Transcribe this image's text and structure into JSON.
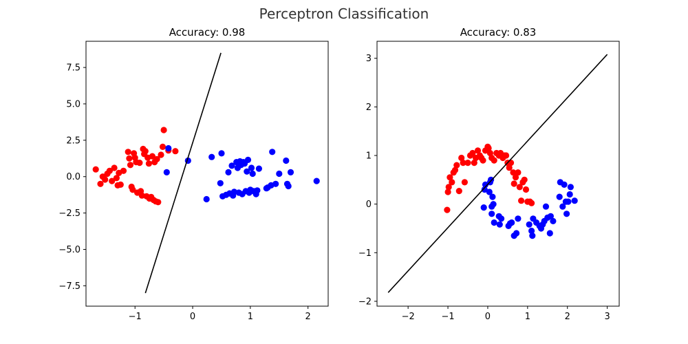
{
  "figure": {
    "suptitle": "Perceptron Classification"
  },
  "colors": {
    "class0": "#ff0000",
    "class1": "#0000ff",
    "boundary": "#000000"
  },
  "chart_data": [
    {
      "type": "scatter",
      "title": "Accuracy: 0.98",
      "xlim": [
        -1.85,
        2.35
      ],
      "ylim": [
        -8.9,
        9.3
      ],
      "xticks": [
        -1,
        0,
        1,
        2
      ],
      "xtick_labels": [
        "−1",
        "0",
        "1",
        "2"
      ],
      "yticks": [
        -7.5,
        -5.0,
        -2.5,
        0.0,
        2.5,
        5.0,
        7.5
      ],
      "ytick_labels": [
        "−7.5",
        "−5.0",
        "−2.5",
        "0.0",
        "2.5",
        "5.0",
        "7.5"
      ],
      "boundary": {
        "x": [
          -0.82,
          0.49
        ],
        "y": [
          -8.0,
          8.5
        ]
      },
      "series": [
        {
          "color": "#ff0000",
          "points": [
            [
              -1.68,
              0.5
            ],
            [
              -1.6,
              -0.5
            ],
            [
              -1.56,
              0.0
            ],
            [
              -1.52,
              -0.2
            ],
            [
              -1.48,
              0.2
            ],
            [
              -1.44,
              0.4
            ],
            [
              -1.4,
              -0.3
            ],
            [
              -1.36,
              0.6
            ],
            [
              -1.32,
              -0.1
            ],
            [
              -1.3,
              -0.6
            ],
            [
              -1.28,
              0.25
            ],
            [
              -1.25,
              -0.55
            ],
            [
              -1.2,
              0.4
            ],
            [
              -1.12,
              1.7
            ],
            [
              -1.1,
              1.25
            ],
            [
              -1.08,
              0.8
            ],
            [
              -1.06,
              -0.7
            ],
            [
              -1.04,
              -0.9
            ],
            [
              -1.02,
              1.6
            ],
            [
              -1.0,
              1.3
            ],
            [
              -0.98,
              1.0
            ],
            [
              -0.96,
              -1.1
            ],
            [
              -0.92,
              0.95
            ],
            [
              -0.9,
              -1.0
            ],
            [
              -0.88,
              -1.3
            ],
            [
              -0.86,
              1.9
            ],
            [
              -0.84,
              1.55
            ],
            [
              -0.82,
              1.75
            ],
            [
              -0.8,
              -1.35
            ],
            [
              -0.78,
              1.3
            ],
            [
              -0.76,
              0.9
            ],
            [
              -0.75,
              -1.5
            ],
            [
              -0.72,
              -1.4
            ],
            [
              -0.7,
              1.4
            ],
            [
              -0.68,
              -1.6
            ],
            [
              -0.66,
              1.0
            ],
            [
              -0.64,
              -1.7
            ],
            [
              -0.62,
              1.2
            ],
            [
              -0.6,
              -1.75
            ],
            [
              -0.55,
              1.5
            ],
            [
              -0.52,
              2.05
            ],
            [
              -0.5,
              3.2
            ],
            [
              -0.42,
              1.8
            ],
            [
              -0.3,
              1.75
            ]
          ]
        },
        {
          "color": "#0000ff",
          "points": [
            [
              -0.45,
              0.3
            ],
            [
              -0.42,
              1.95
            ],
            [
              -0.08,
              1.1
            ],
            [
              0.24,
              -1.55
            ],
            [
              0.33,
              1.35
            ],
            [
              0.48,
              -0.45
            ],
            [
              0.5,
              1.6
            ],
            [
              0.52,
              -1.35
            ],
            [
              0.58,
              -1.25
            ],
            [
              0.62,
              0.3
            ],
            [
              0.64,
              -1.15
            ],
            [
              0.68,
              0.75
            ],
            [
              0.7,
              -1.3
            ],
            [
              0.72,
              -1.05
            ],
            [
              0.76,
              1.0
            ],
            [
              0.78,
              0.6
            ],
            [
              0.8,
              -1.1
            ],
            [
              0.82,
              1.05
            ],
            [
              0.84,
              0.8
            ],
            [
              0.86,
              -1.2
            ],
            [
              0.88,
              1.0
            ],
            [
              0.9,
              0.9
            ],
            [
              0.92,
              -1.0
            ],
            [
              0.94,
              0.35
            ],
            [
              0.96,
              1.15
            ],
            [
              0.98,
              -1.1
            ],
            [
              1.0,
              -0.9
            ],
            [
              1.02,
              0.6
            ],
            [
              1.04,
              0.2
            ],
            [
              1.06,
              -1.0
            ],
            [
              1.08,
              -1.05
            ],
            [
              1.1,
              -1.2
            ],
            [
              1.12,
              -0.95
            ],
            [
              1.15,
              0.55
            ],
            [
              1.28,
              -0.8
            ],
            [
              1.3,
              -0.75
            ],
            [
              1.36,
              -0.6
            ],
            [
              1.38,
              1.7
            ],
            [
              1.44,
              -0.5
            ],
            [
              1.5,
              0.2
            ],
            [
              1.62,
              1.1
            ],
            [
              1.64,
              -0.5
            ],
            [
              1.66,
              -0.65
            ],
            [
              1.7,
              0.3
            ],
            [
              2.15,
              -0.3
            ]
          ]
        }
      ]
    },
    {
      "type": "scatter",
      "title": "Accuracy: 0.83",
      "xlim": [
        -2.78,
        3.3
      ],
      "ylim": [
        -2.1,
        3.35
      ],
      "xticks": [
        -2,
        -1,
        0,
        1,
        2,
        3
      ],
      "xtick_labels": [
        "−2",
        "−1",
        "0",
        "1",
        "2",
        "3"
      ],
      "yticks": [
        -2,
        -1,
        0,
        1,
        2,
        3
      ],
      "ytick_labels": [
        "−2",
        "−1",
        "0",
        "1",
        "2",
        "3"
      ],
      "boundary": {
        "x": [
          -2.5,
          3.0
        ],
        "y": [
          -1.82,
          3.08
        ]
      },
      "series": [
        {
          "color": "#ff0000",
          "points": [
            [
              -1.02,
              -0.12
            ],
            [
              -1.0,
              0.25
            ],
            [
              -0.98,
              0.35
            ],
            [
              -0.95,
              0.55
            ],
            [
              -0.9,
              0.45
            ],
            [
              -0.86,
              0.65
            ],
            [
              -0.82,
              0.7
            ],
            [
              -0.78,
              0.8
            ],
            [
              -0.72,
              0.27
            ],
            [
              -0.66,
              0.95
            ],
            [
              -0.62,
              0.85
            ],
            [
              -0.58,
              0.45
            ],
            [
              -0.5,
              0.85
            ],
            [
              -0.44,
              1.0
            ],
            [
              -0.38,
              1.05
            ],
            [
              -0.34,
              0.85
            ],
            [
              -0.3,
              0.95
            ],
            [
              -0.25,
              1.1
            ],
            [
              -0.2,
              1.0
            ],
            [
              -0.16,
              0.95
            ],
            [
              -0.12,
              0.9
            ],
            [
              -0.06,
              1.1
            ],
            [
              0.0,
              1.18
            ],
            [
              0.02,
              1.15
            ],
            [
              0.06,
              1.05
            ],
            [
              0.1,
              0.95
            ],
            [
              0.16,
              0.9
            ],
            [
              0.22,
              1.05
            ],
            [
              0.28,
              1.0
            ],
            [
              0.32,
              1.05
            ],
            [
              0.38,
              0.95
            ],
            [
              0.42,
              1.0
            ],
            [
              0.46,
              1.0
            ],
            [
              0.5,
              0.85
            ],
            [
              0.54,
              0.75
            ],
            [
              0.58,
              0.85
            ],
            [
              0.64,
              0.65
            ],
            [
              0.66,
              0.42
            ],
            [
              0.7,
              0.55
            ],
            [
              0.76,
              0.65
            ],
            [
              0.8,
              0.35
            ],
            [
              0.84,
              0.07
            ],
            [
              0.88,
              0.45
            ],
            [
              0.92,
              0.5
            ],
            [
              0.96,
              0.3
            ],
            [
              1.0,
              0.05
            ],
            [
              1.06,
              0.05
            ],
            [
              1.1,
              0.02
            ]
          ]
        },
        {
          "color": "#0000ff",
          "points": [
            [
              -0.1,
              -0.07
            ],
            [
              -0.08,
              0.3
            ],
            [
              -0.06,
              0.4
            ],
            [
              0.04,
              0.25
            ],
            [
              0.06,
              0.45
            ],
            [
              0.08,
              0.5
            ],
            [
              0.1,
              -0.05
            ],
            [
              0.1,
              -0.2
            ],
            [
              0.12,
              0.15
            ],
            [
              0.14,
              0.0
            ],
            [
              0.16,
              -0.38
            ],
            [
              0.28,
              -0.25
            ],
            [
              0.3,
              -0.42
            ],
            [
              0.34,
              -0.3
            ],
            [
              0.52,
              -0.45
            ],
            [
              0.56,
              -0.4
            ],
            [
              0.6,
              -0.38
            ],
            [
              0.66,
              -0.65
            ],
            [
              0.72,
              -0.6
            ],
            [
              0.76,
              -0.3
            ],
            [
              1.04,
              -0.42
            ],
            [
              1.1,
              -0.55
            ],
            [
              1.12,
              -0.65
            ],
            [
              1.14,
              -0.3
            ],
            [
              1.22,
              -0.38
            ],
            [
              1.3,
              -0.45
            ],
            [
              1.34,
              -0.5
            ],
            [
              1.38,
              -0.42
            ],
            [
              1.42,
              -0.35
            ],
            [
              1.46,
              -0.05
            ],
            [
              1.5,
              -0.28
            ],
            [
              1.56,
              -0.6
            ],
            [
              1.58,
              -0.25
            ],
            [
              1.64,
              -0.35
            ],
            [
              1.8,
              0.15
            ],
            [
              1.82,
              0.45
            ],
            [
              1.88,
              -0.05
            ],
            [
              1.92,
              0.4
            ],
            [
              1.96,
              0.05
            ],
            [
              1.98,
              -0.2
            ],
            [
              2.02,
              0.05
            ],
            [
              2.06,
              0.2
            ],
            [
              2.08,
              0.35
            ],
            [
              2.18,
              0.07
            ]
          ]
        }
      ]
    }
  ]
}
